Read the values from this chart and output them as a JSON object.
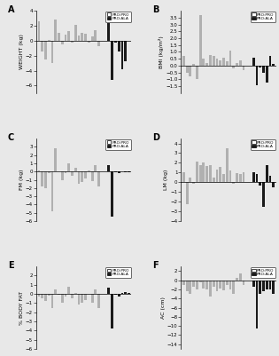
{
  "panels": [
    {
      "label": "A",
      "ylabel": "WEIGHT (kg)",
      "ylim": [
        -7,
        4
      ],
      "yticks": [
        -6,
        -4,
        -2,
        0,
        2,
        4
      ],
      "pro_pro": [
        2.6,
        -1.5,
        -2.5,
        0.1,
        -3.0,
        2.8,
        1.1,
        -0.5,
        0.8,
        1.3,
        -0.3,
        2.1,
        0.7,
        1.0,
        0.9,
        -0.2,
        0.6,
        1.4,
        -0.7
      ],
      "pro_ala": [
        2.4,
        -5.2,
        -0.3,
        -1.5,
        -3.8,
        -2.8,
        0.0
      ]
    },
    {
      "label": "B",
      "ylabel": "BMI (kg/m²)",
      "ylim": [
        -2.0,
        4.0
      ],
      "yticks": [
        -1.5,
        -1.0,
        -0.5,
        0.0,
        0.5,
        1.0,
        1.5,
        2.0,
        2.5,
        3.0,
        3.5
      ],
      "pro_pro": [
        0.7,
        -0.5,
        -0.8,
        0.1,
        -1.0,
        3.7,
        0.5,
        0.2,
        0.8,
        0.7,
        0.5,
        0.4,
        0.6,
        0.3,
        1.1,
        -0.2,
        0.2,
        0.4,
        -0.3
      ],
      "pro_ala": [
        0.6,
        -1.4,
        -0.1,
        -0.5,
        -1.2,
        0.7,
        0.1
      ]
    },
    {
      "label": "C",
      "ylabel": "FM (kg)",
      "ylim": [
        -6,
        4
      ],
      "yticks": [
        -6,
        -5,
        -4,
        -3,
        -2,
        -1,
        0,
        1,
        2,
        3
      ],
      "pro_pro": [
        0.1,
        -1.8,
        -2.0,
        -0.2,
        -4.8,
        2.8,
        0.0,
        -1.0,
        -0.2,
        1.0,
        -0.5,
        0.4,
        -1.5,
        -1.3,
        -0.8,
        0.1,
        -1.2,
        0.8,
        -1.8
      ],
      "pro_ala": [
        0.8,
        -5.5,
        -0.1,
        -0.2,
        0.0,
        -0.1,
        -0.1
      ]
    },
    {
      "label": "D",
      "ylabel": "LM (kg)",
      "ylim": [
        -4,
        4.5
      ],
      "yticks": [
        -4,
        -3,
        -2,
        -1,
        0,
        1,
        2,
        3,
        4
      ],
      "pro_pro": [
        1.0,
        -2.3,
        0.5,
        -0.2,
        2.1,
        1.8,
        2.0,
        1.7,
        1.8,
        0.5,
        1.3,
        1.6,
        0.8,
        3.5,
        1.2,
        -0.2,
        0.9,
        0.8,
        1.0
      ],
      "pro_ala": [
        1.0,
        0.8,
        -0.3,
        -2.5,
        1.8,
        0.7,
        -0.5
      ]
    },
    {
      "label": "E",
      "ylabel": "% BODY FAT",
      "ylim": [
        -6,
        3
      ],
      "yticks": [
        -6,
        -5,
        -4,
        -3,
        -2,
        -1,
        0,
        1,
        2
      ],
      "pro_pro": [
        -0.3,
        -0.5,
        -0.8,
        -0.2,
        -1.5,
        0.5,
        -0.1,
        -1.0,
        -0.3,
        0.8,
        -0.5,
        0.1,
        -1.2,
        -1.0,
        -0.7,
        0.0,
        -1.0,
        0.5,
        -1.5
      ],
      "pro_ala": [
        0.7,
        -3.8,
        -0.1,
        -0.3,
        0.1,
        0.2,
        0.1
      ]
    },
    {
      "label": "F",
      "ylabel": "AC (cm)",
      "ylim": [
        -15,
        3
      ],
      "yticks": [
        -14,
        -12,
        -10,
        -8,
        -6,
        -4,
        -2,
        0,
        2
      ],
      "pro_pro": [
        -1.0,
        -2.5,
        -3.0,
        -1.5,
        -2.0,
        -0.5,
        -1.8,
        -2.0,
        -3.5,
        -1.5,
        -2.5,
        -1.8,
        -2.2,
        -1.0,
        -2.0,
        -3.0,
        0.5,
        1.5,
        -1.0
      ],
      "pro_ala": [
        -1.5,
        -10.5,
        -3.0,
        -2.5,
        -2.0,
        -2.0,
        -3.0
      ]
    }
  ],
  "pro_pro_color": "#b0b0b0",
  "pro_ala_color": "#1a1a1a",
  "legend_pro_pro": "PRO:PRO",
  "legend_pro_ala": "PRO:ALA",
  "fig_bg": "#e8e8e8"
}
